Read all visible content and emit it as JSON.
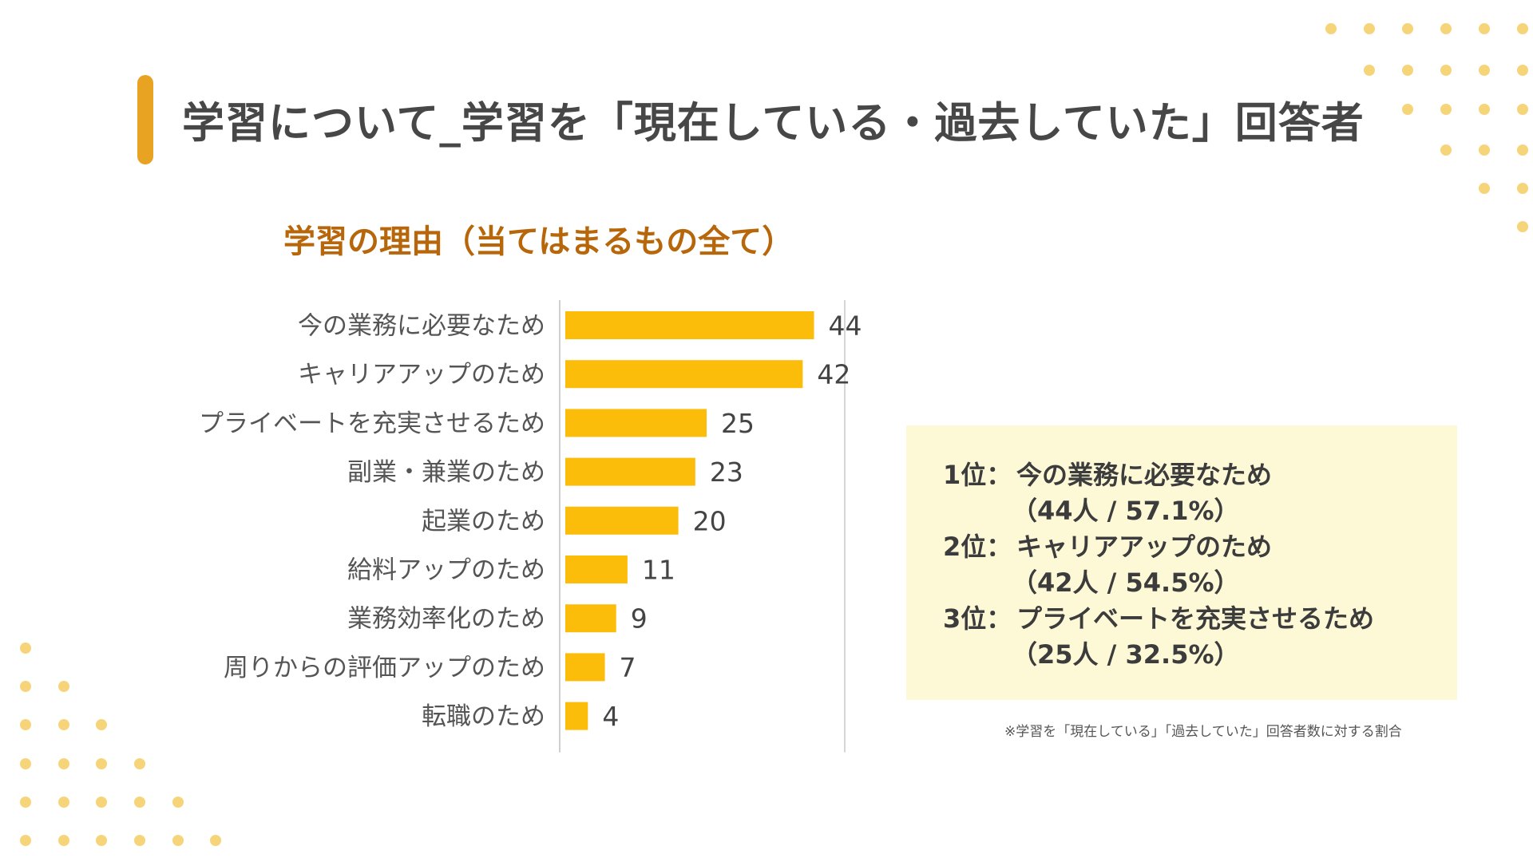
{
  "header": {
    "title": "学習について_学習を「現在している・過去していた」回答者"
  },
  "chart_data": {
    "type": "bar",
    "orientation": "horizontal",
    "title": "学習の理由（当てはまるもの全て）",
    "categories": [
      "今の業務に必要なため",
      "キャリアアップのため",
      "プライベートを充実させるため",
      "副業・兼業のため",
      "起業のため",
      "給料アップのため",
      "業務効率化のため",
      "周りからの評価アップのため",
      "転職のため"
    ],
    "values": [
      44,
      42,
      25,
      23,
      20,
      11,
      9,
      7,
      4
    ],
    "xlim": [
      0,
      50
    ],
    "grid": false,
    "bar_color": "#fbbd0a"
  },
  "summary": {
    "items": [
      {
        "rank": "1位：",
        "label": "今の業務に必要なため",
        "detail": "（44人 / 57.1%）"
      },
      {
        "rank": "2位：",
        "label": "キャリアアップのため",
        "detail": "（42人 / 54.5%）"
      },
      {
        "rank": "3位：",
        "label": "プライベートを充実させるため",
        "detail": "（25人 / 32.5%）"
      }
    ]
  },
  "footnote": "※学習を「現在している」「過去していた」回答者数に対する割合",
  "colors": {
    "accent": "#e9a322",
    "chart_title": "#b8660a",
    "summary_bg": "#fdf8d6",
    "dots": "#f6d47a"
  }
}
